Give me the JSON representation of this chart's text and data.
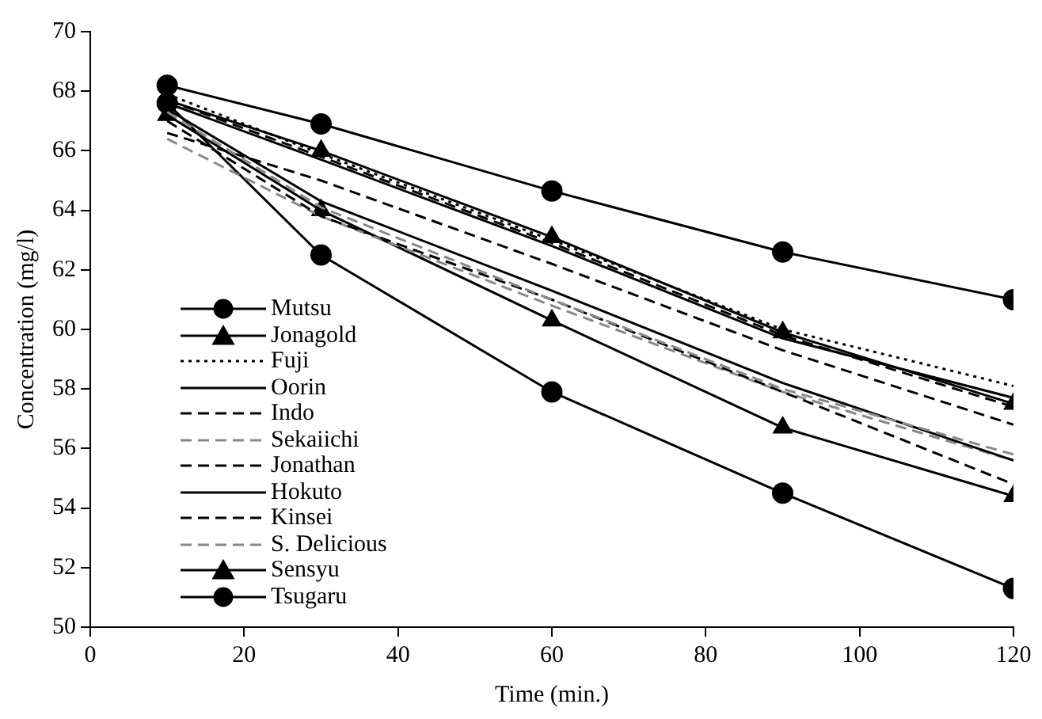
{
  "chart_data": {
    "type": "line",
    "xlabel": "Time (min.)",
    "ylabel": "Concentration (mg/l)",
    "x": [
      10,
      30,
      60,
      90,
      120
    ],
    "xlim": [
      0,
      120
    ],
    "xticks": [
      0,
      20,
      40,
      60,
      80,
      100,
      120
    ],
    "ylim": [
      50,
      70
    ],
    "yticks": [
      50,
      52,
      54,
      56,
      58,
      60,
      62,
      64,
      66,
      68,
      70
    ],
    "grid": false,
    "legend": "bottom left",
    "series": [
      {
        "name": "Mutsu",
        "color": "#000000",
        "marker": "circle",
        "line_style": "solid",
        "values": [
          68.2,
          66.9,
          64.65,
          62.6,
          61.0
        ]
      },
      {
        "name": "Jonagold",
        "color": "#000000",
        "marker": "triangle",
        "line_style": "solid",
        "values": [
          67.7,
          66.0,
          63.1,
          59.9,
          57.5
        ]
      },
      {
        "name": "Fuji",
        "color": "#000000",
        "marker": "none",
        "line_style": "dotted",
        "values": [
          67.9,
          65.9,
          63.0,
          60.0,
          58.1
        ]
      },
      {
        "name": "Oorin",
        "color": "#000000",
        "marker": "none",
        "line_style": "solid",
        "values": [
          67.6,
          65.7,
          62.8,
          59.7,
          57.7
        ]
      },
      {
        "name": "Indo",
        "color": "#000000",
        "marker": "none",
        "line_style": "dashed",
        "values": [
          67.7,
          65.8,
          62.9,
          59.8,
          57.4
        ]
      },
      {
        "name": "Sekaiichi",
        "color": "#888888",
        "marker": "none",
        "line_style": "dashed",
        "values": [
          67.3,
          64.1,
          61.0,
          58.0,
          55.8
        ]
      },
      {
        "name": "Jonathan",
        "color": "#000000",
        "marker": "none",
        "line_style": "dashed",
        "values": [
          66.6,
          65.0,
          62.2,
          59.3,
          56.8
        ]
      },
      {
        "name": "Hokuto",
        "color": "#000000",
        "marker": "none",
        "line_style": "solid",
        "values": [
          67.4,
          64.3,
          61.3,
          58.2,
          55.6
        ]
      },
      {
        "name": "Kinsei",
        "color": "#000000",
        "marker": "none",
        "line_style": "dashed",
        "values": [
          67.0,
          63.8,
          61.0,
          57.9,
          54.8
        ]
      },
      {
        "name": "S. Delicious",
        "color": "#888888",
        "marker": "none",
        "line_style": "dashed",
        "values": [
          66.4,
          63.8,
          60.8,
          57.9,
          55.6
        ]
      },
      {
        "name": "Sensyu",
        "color": "#000000",
        "marker": "triangle",
        "line_style": "solid",
        "values": [
          67.2,
          64.0,
          60.3,
          56.7,
          54.4
        ]
      },
      {
        "name": "Tsugaru",
        "color": "#000000",
        "marker": "circle",
        "line_style": "solid",
        "values": [
          67.6,
          62.5,
          57.9,
          54.5,
          51.3
        ]
      }
    ]
  }
}
